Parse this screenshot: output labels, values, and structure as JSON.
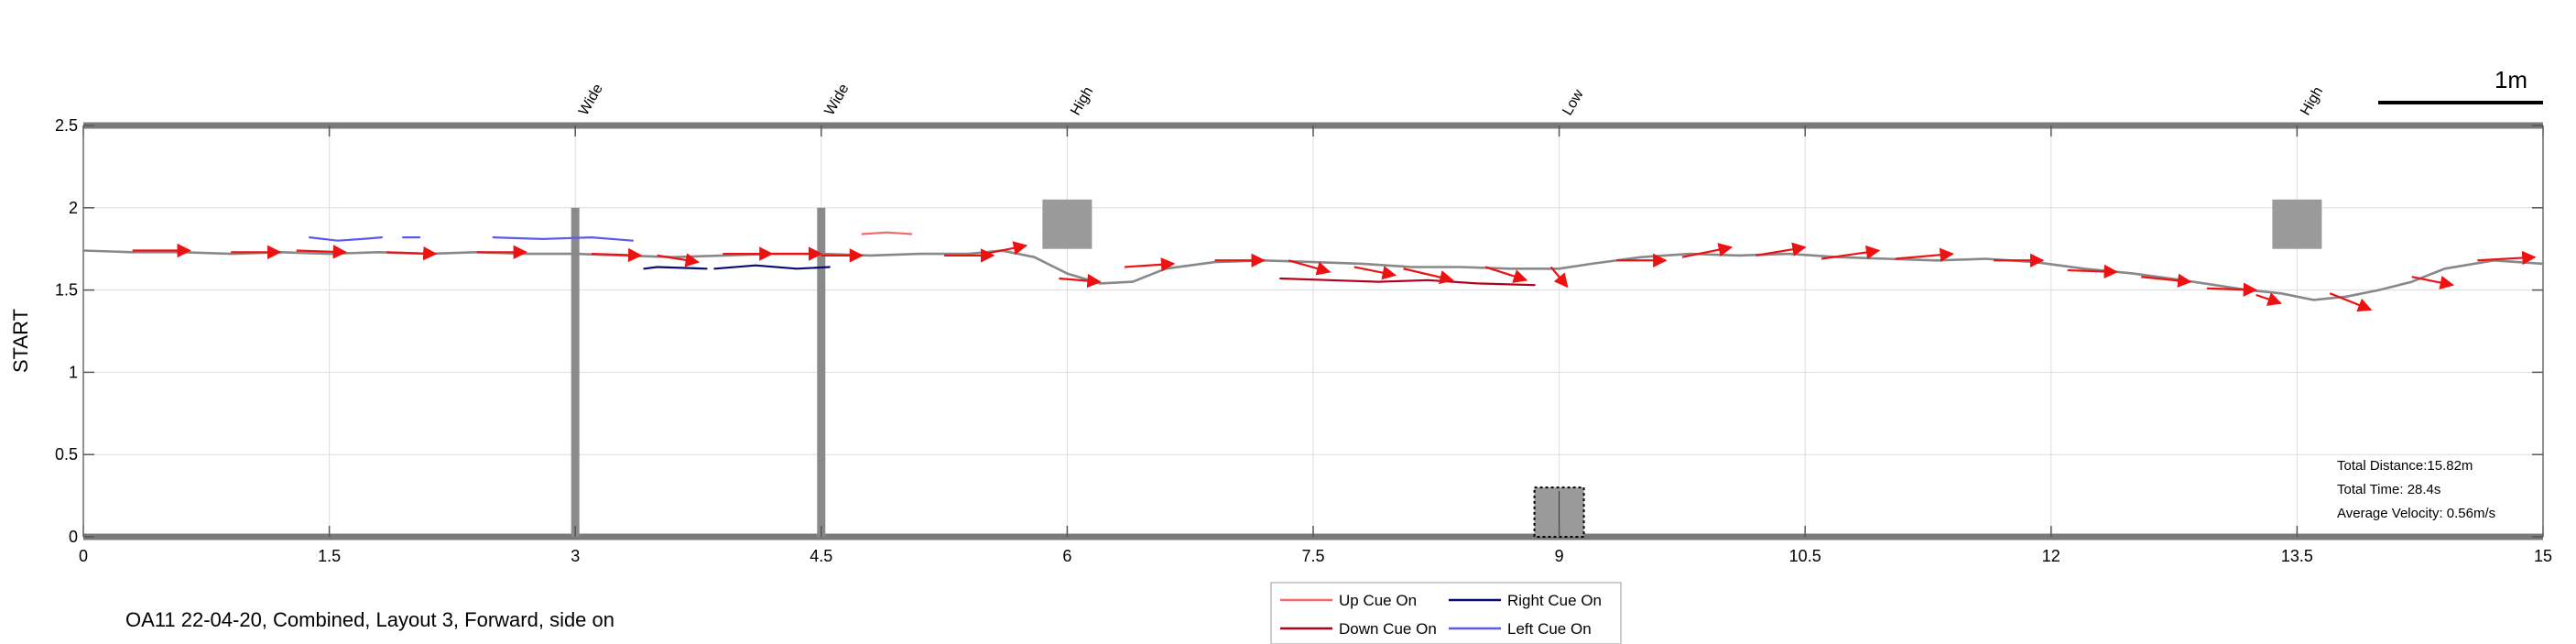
{
  "chart_data": {
    "type": "line",
    "caption": "OA11 22-04-20, Combined, Layout 3, Forward, side on",
    "ylabel": "START",
    "xlim": [
      0,
      15
    ],
    "ylim": [
      0,
      2.5
    ],
    "x_ticks": [
      0,
      1.5,
      3,
      4.5,
      6,
      7.5,
      9,
      10.5,
      12,
      13.5,
      15
    ],
    "x_tick_labels": [
      "0",
      "1.5",
      "3",
      "4.5",
      "6",
      "7.5",
      "9",
      "10.5",
      "12",
      "13.5",
      "15"
    ],
    "y_ticks": [
      0,
      0.5,
      1,
      1.5,
      2,
      2.5
    ],
    "y_tick_labels": [
      "0",
      "0.5",
      "1",
      "1.5",
      "2",
      "2.5"
    ],
    "grid": true,
    "scale_bar_label": "1m",
    "obstacles": [
      {
        "x": 3.0,
        "label": "Wide",
        "kind": "pole",
        "y_top": 2.0
      },
      {
        "x": 4.5,
        "label": "Wide",
        "kind": "pole",
        "y_top": 2.0
      },
      {
        "x": 6.0,
        "label": "High",
        "kind": "box",
        "y_range": [
          1.75,
          2.05
        ]
      },
      {
        "x": 9.0,
        "label": "Low",
        "kind": "box",
        "y_range": [
          0,
          0.3
        ]
      },
      {
        "x": 13.5,
        "label": "High",
        "kind": "box",
        "y_range": [
          1.75,
          2.05
        ]
      }
    ],
    "stats": [
      "Total Distance:15.82m",
      "Total Time: 28.4s",
      "Average Velocity: 0.56m/s"
    ],
    "legend": [
      {
        "label": "Up Cue On",
        "color": "#f26a6a"
      },
      {
        "label": "Right Cue On",
        "color": "#0b0b6e"
      },
      {
        "label": "Down Cue On",
        "color": "#b3001b"
      },
      {
        "label": "Left Cue On",
        "color": "#5a5aee"
      }
    ],
    "series": [
      {
        "name": "trajectory",
        "color": "#888888",
        "x": [
          0,
          0.3,
          0.6,
          0.9,
          1.2,
          1.5,
          1.8,
          2.1,
          2.4,
          2.7,
          3.0,
          3.3,
          3.6,
          3.9,
          4.2,
          4.5,
          4.8,
          5.1,
          5.4,
          5.6,
          5.8,
          6.0,
          6.2,
          6.4,
          6.6,
          6.9,
          7.2,
          7.5,
          7.8,
          8.1,
          8.4,
          8.7,
          9.0,
          9.2,
          9.5,
          9.8,
          10.1,
          10.4,
          10.7,
          11.0,
          11.3,
          11.6,
          11.9,
          12.2,
          12.5,
          12.8,
          13.0,
          13.2,
          13.4,
          13.6,
          13.8,
          14.0,
          14.2,
          14.4,
          14.7,
          15.0
        ],
        "y": [
          1.74,
          1.73,
          1.73,
          1.72,
          1.73,
          1.72,
          1.73,
          1.72,
          1.73,
          1.72,
          1.72,
          1.71,
          1.7,
          1.71,
          1.72,
          1.72,
          1.71,
          1.72,
          1.72,
          1.74,
          1.7,
          1.6,
          1.54,
          1.55,
          1.63,
          1.67,
          1.68,
          1.67,
          1.66,
          1.64,
          1.64,
          1.63,
          1.63,
          1.66,
          1.7,
          1.72,
          1.71,
          1.72,
          1.7,
          1.69,
          1.68,
          1.69,
          1.67,
          1.63,
          1.6,
          1.56,
          1.53,
          1.5,
          1.48,
          1.44,
          1.46,
          1.5,
          1.55,
          1.63,
          1.68,
          1.66
        ]
      },
      {
        "name": "left_cue_segments",
        "color": "#5a5aee",
        "segments": [
          {
            "x": [
              1.38,
              1.55,
              1.7,
              1.82
            ],
            "y": [
              1.82,
              1.8,
              1.81,
              1.82
            ]
          },
          {
            "x": [
              1.95,
              2.05
            ],
            "y": [
              1.82,
              1.82
            ]
          },
          {
            "x": [
              2.5,
              2.8,
              3.1,
              3.35
            ],
            "y": [
              1.82,
              1.81,
              1.82,
              1.8
            ]
          }
        ]
      },
      {
        "name": "right_cue_segments",
        "color": "#0b0b6e",
        "segments": [
          {
            "x": [
              3.42,
              3.5
            ],
            "y": [
              1.63,
              1.64
            ]
          },
          {
            "x": [
              3.5,
              3.8
            ],
            "y": [
              1.64,
              1.63
            ]
          },
          {
            "x": [
              3.85,
              4.1,
              4.35,
              4.55
            ],
            "y": [
              1.63,
              1.65,
              1.63,
              1.64
            ]
          }
        ]
      },
      {
        "name": "up_cue_segments",
        "color": "#f26a6a",
        "segments": [
          {
            "x": [
              4.75,
              4.9,
              5.05
            ],
            "y": [
              1.84,
              1.85,
              1.84
            ]
          }
        ]
      },
      {
        "name": "down_cue_segments",
        "color": "#b3001b",
        "segments": [
          {
            "x": [
              7.3,
              7.6,
              7.9,
              8.2,
              8.5,
              8.85
            ],
            "y": [
              1.57,
              1.56,
              1.55,
              1.56,
              1.54,
              1.53
            ]
          }
        ]
      }
    ],
    "arrows": {
      "color": "#ee1111",
      "vectors": [
        [
          0.3,
          1.74,
          0.35,
          0.0
        ],
        [
          0.9,
          1.73,
          0.3,
          0.0
        ],
        [
          1.3,
          1.74,
          0.3,
          -0.01
        ],
        [
          1.85,
          1.73,
          0.3,
          -0.01
        ],
        [
          2.4,
          1.73,
          0.3,
          0.0
        ],
        [
          3.1,
          1.72,
          0.3,
          -0.01
        ],
        [
          3.5,
          1.71,
          0.25,
          -0.04
        ],
        [
          3.9,
          1.72,
          0.3,
          0.0
        ],
        [
          4.2,
          1.72,
          0.3,
          0.0
        ],
        [
          4.5,
          1.71,
          0.25,
          0.0
        ],
        [
          5.25,
          1.71,
          0.3,
          0.0
        ],
        [
          5.5,
          1.72,
          0.25,
          0.05
        ],
        [
          5.95,
          1.57,
          0.25,
          -0.02
        ],
        [
          6.35,
          1.64,
          0.3,
          0.02
        ],
        [
          6.9,
          1.68,
          0.3,
          0.0
        ],
        [
          7.35,
          1.68,
          0.25,
          -0.07
        ],
        [
          7.75,
          1.64,
          0.25,
          -0.05
        ],
        [
          8.05,
          1.63,
          0.3,
          -0.07
        ],
        [
          8.55,
          1.64,
          0.25,
          -0.08
        ],
        [
          8.95,
          1.64,
          0.1,
          -0.12
        ],
        [
          9.35,
          1.68,
          0.3,
          0.0
        ],
        [
          9.75,
          1.7,
          0.3,
          0.06
        ],
        [
          10.2,
          1.71,
          0.3,
          0.05
        ],
        [
          10.6,
          1.69,
          0.35,
          0.05
        ],
        [
          11.05,
          1.69,
          0.35,
          0.03
        ],
        [
          11.65,
          1.68,
          0.3,
          0.0
        ],
        [
          12.1,
          1.62,
          0.3,
          -0.01
        ],
        [
          12.55,
          1.58,
          0.3,
          -0.03
        ],
        [
          12.95,
          1.51,
          0.3,
          -0.01
        ],
        [
          13.25,
          1.47,
          0.15,
          -0.05
        ],
        [
          13.7,
          1.48,
          0.25,
          -0.1
        ],
        [
          14.2,
          1.58,
          0.25,
          -0.05
        ],
        [
          14.6,
          1.68,
          0.35,
          0.02
        ]
      ]
    }
  }
}
